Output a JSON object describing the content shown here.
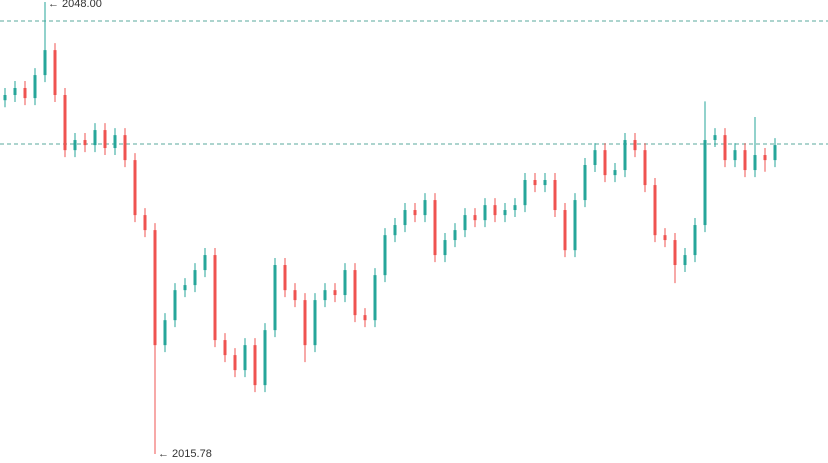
{
  "chart_data": {
    "type": "candlestick",
    "up_color": "#26a69a",
    "down_color": "#ef5350",
    "level_color": "#5aa89d",
    "levels": [
      2046.65,
      2037.88
    ],
    "high_label": "← 2048.00",
    "low_label": "← 2015.78",
    "open": [
      2041.0,
      2041.37,
      2041.87,
      2041.15,
      2042.79,
      2044.57,
      2041.37,
      2037.44,
      2038.16,
      2037.8,
      2038.87,
      2037.59,
      2038.51,
      2036.73,
      2032.81,
      2031.74,
      2023.54,
      2025.32,
      2027.46,
      2027.82,
      2028.89,
      2029.96,
      2023.9,
      2022.83,
      2021.76,
      2023.54,
      2020.69,
      2024.61,
      2029.25,
      2027.46,
      2026.75,
      2023.54,
      2026.75,
      2027.46,
      2027.11,
      2028.89,
      2025.68,
      2025.32,
      2028.53,
      2031.38,
      2032.1,
      2033.17,
      2032.81,
      2033.88,
      2029.96,
      2031.03,
      2031.74,
      2032.81,
      2032.45,
      2033.52,
      2032.81,
      2033.17,
      2033.52,
      2035.31,
      2034.95,
      2035.31,
      2033.17,
      2030.31,
      2033.88,
      2036.38,
      2037.44,
      2035.66,
      2036.02,
      2038.16,
      2037.44,
      2034.95,
      2031.38,
      2031.03,
      2029.25,
      2029.96,
      2032.1,
      2038.16,
      2038.51,
      2036.73,
      2037.44,
      2036.02,
      2037.09,
      2036.73
    ],
    "high": [
      2041.87,
      2042.37,
      2042.37,
      2043.29,
      2048.0,
      2045.07,
      2041.87,
      2038.66,
      2038.66,
      2039.37,
      2039.37,
      2039.01,
      2039.01,
      2037.23,
      2033.31,
      2032.24,
      2025.82,
      2027.96,
      2028.32,
      2029.39,
      2030.46,
      2030.46,
      2024.4,
      2023.33,
      2024.04,
      2024.04,
      2025.11,
      2029.75,
      2029.75,
      2027.96,
      2027.25,
      2027.25,
      2027.96,
      2027.96,
      2029.39,
      2029.39,
      2026.18,
      2029.03,
      2031.88,
      2032.6,
      2033.67,
      2033.67,
      2034.38,
      2034.38,
      2031.53,
      2032.24,
      2033.31,
      2033.31,
      2034.02,
      2034.02,
      2033.67,
      2034.02,
      2035.81,
      2035.81,
      2035.81,
      2035.81,
      2033.67,
      2034.38,
      2036.88,
      2037.94,
      2037.94,
      2036.52,
      2038.66,
      2038.66,
      2037.94,
      2035.45,
      2031.88,
      2031.53,
      2030.46,
      2032.6,
      2040.92,
      2039.01,
      2039.01,
      2037.94,
      2037.94,
      2039.8,
      2037.59,
      2038.3
    ],
    "low": [
      2040.5,
      2040.87,
      2040.65,
      2040.65,
      2042.29,
      2040.87,
      2036.94,
      2036.94,
      2037.3,
      2037.3,
      2037.09,
      2037.09,
      2036.23,
      2032.31,
      2031.24,
      2015.78,
      2023.04,
      2024.82,
      2026.96,
      2027.32,
      2028.39,
      2023.4,
      2022.33,
      2021.26,
      2021.26,
      2020.19,
      2020.19,
      2024.11,
      2026.96,
      2026.25,
      2022.33,
      2023.04,
      2026.25,
      2026.61,
      2026.61,
      2025.18,
      2024.82,
      2024.82,
      2028.03,
      2030.88,
      2031.6,
      2032.31,
      2032.31,
      2029.46,
      2029.46,
      2030.53,
      2031.24,
      2031.95,
      2031.95,
      2032.31,
      2032.31,
      2032.67,
      2033.02,
      2034.45,
      2034.45,
      2032.67,
      2029.81,
      2029.81,
      2033.38,
      2035.88,
      2035.16,
      2035.16,
      2035.52,
      2036.94,
      2034.45,
      2030.88,
      2030.53,
      2027.96,
      2028.75,
      2029.46,
      2031.6,
      2037.66,
      2036.23,
      2036.23,
      2035.52,
      2035.52,
      2035.9,
      2036.23
    ],
    "close": [
      2041.37,
      2041.87,
      2041.15,
      2042.79,
      2044.57,
      2041.37,
      2037.44,
      2038.16,
      2037.8,
      2038.87,
      2037.59,
      2038.51,
      2036.73,
      2032.81,
      2031.74,
      2023.54,
      2025.32,
      2027.46,
      2027.82,
      2028.89,
      2029.96,
      2023.9,
      2022.83,
      2021.76,
      2023.54,
      2020.69,
      2024.61,
      2029.25,
      2027.46,
      2026.75,
      2023.54,
      2026.75,
      2027.46,
      2027.11,
      2028.89,
      2025.68,
      2025.32,
      2028.53,
      2031.38,
      2032.1,
      2033.17,
      2032.81,
      2033.88,
      2029.96,
      2031.03,
      2031.74,
      2032.81,
      2032.45,
      2033.52,
      2032.81,
      2033.17,
      2033.52,
      2035.31,
      2034.95,
      2035.31,
      2033.17,
      2030.31,
      2033.88,
      2036.38,
      2037.44,
      2035.66,
      2036.02,
      2038.16,
      2037.44,
      2034.95,
      2031.38,
      2031.03,
      2029.25,
      2029.96,
      2032.1,
      2038.16,
      2038.51,
      2036.73,
      2037.44,
      2036.02,
      2037.09,
      2036.73,
      2037.8
    ]
  }
}
